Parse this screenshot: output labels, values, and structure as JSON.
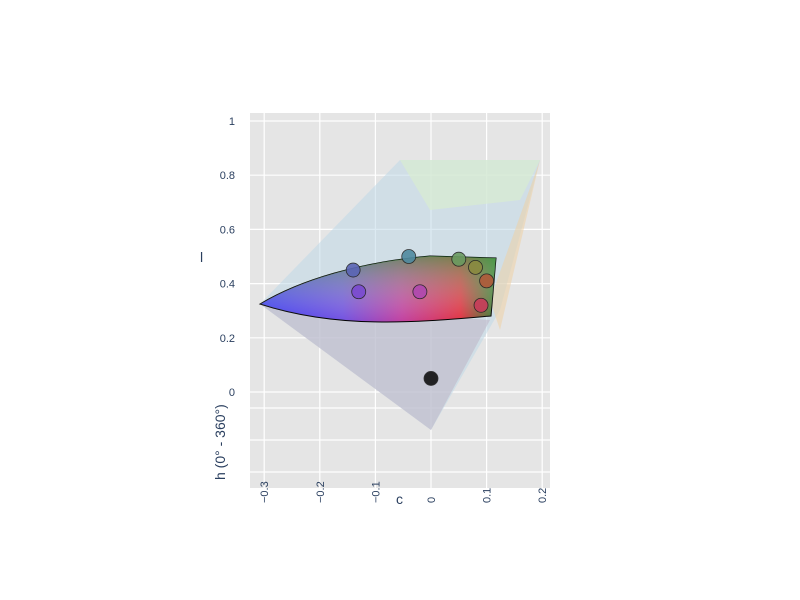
{
  "chart_data": {
    "type": "scatter",
    "projection": "3d",
    "xlabel": "c",
    "ylabel": "l",
    "zlabel": "h (0° - 360°)",
    "x_ticks": [
      "−0.3",
      "−0.2",
      "−0.1",
      "0",
      "0.1",
      "0.2"
    ],
    "y_ticks": [
      "0",
      "0.2",
      "0.4",
      "0.6",
      "0.8",
      "1"
    ],
    "xlim": [
      -0.32,
      0.21
    ],
    "ylim": [
      -0.35,
      1.03
    ],
    "grid": true,
    "background": "#e5e5e5",
    "points": [
      {
        "c": -0.14,
        "l": 0.45,
        "color": "#5a64b4"
      },
      {
        "c": -0.04,
        "l": 0.5,
        "color": "#4f8aa0"
      },
      {
        "c": 0.05,
        "l": 0.49,
        "color": "#6a9a60"
      },
      {
        "c": 0.08,
        "l": 0.46,
        "color": "#8a8a40"
      },
      {
        "c": 0.1,
        "l": 0.41,
        "color": "#b05a3a"
      },
      {
        "c": 0.09,
        "l": 0.32,
        "color": "#c83c5a"
      },
      {
        "c": -0.13,
        "l": 0.37,
        "color": "#7a4ad0"
      },
      {
        "c": -0.02,
        "l": 0.37,
        "color": "#b048b0"
      },
      {
        "c": 0.0,
        "l": 0.05,
        "color": "#111111"
      }
    ]
  }
}
